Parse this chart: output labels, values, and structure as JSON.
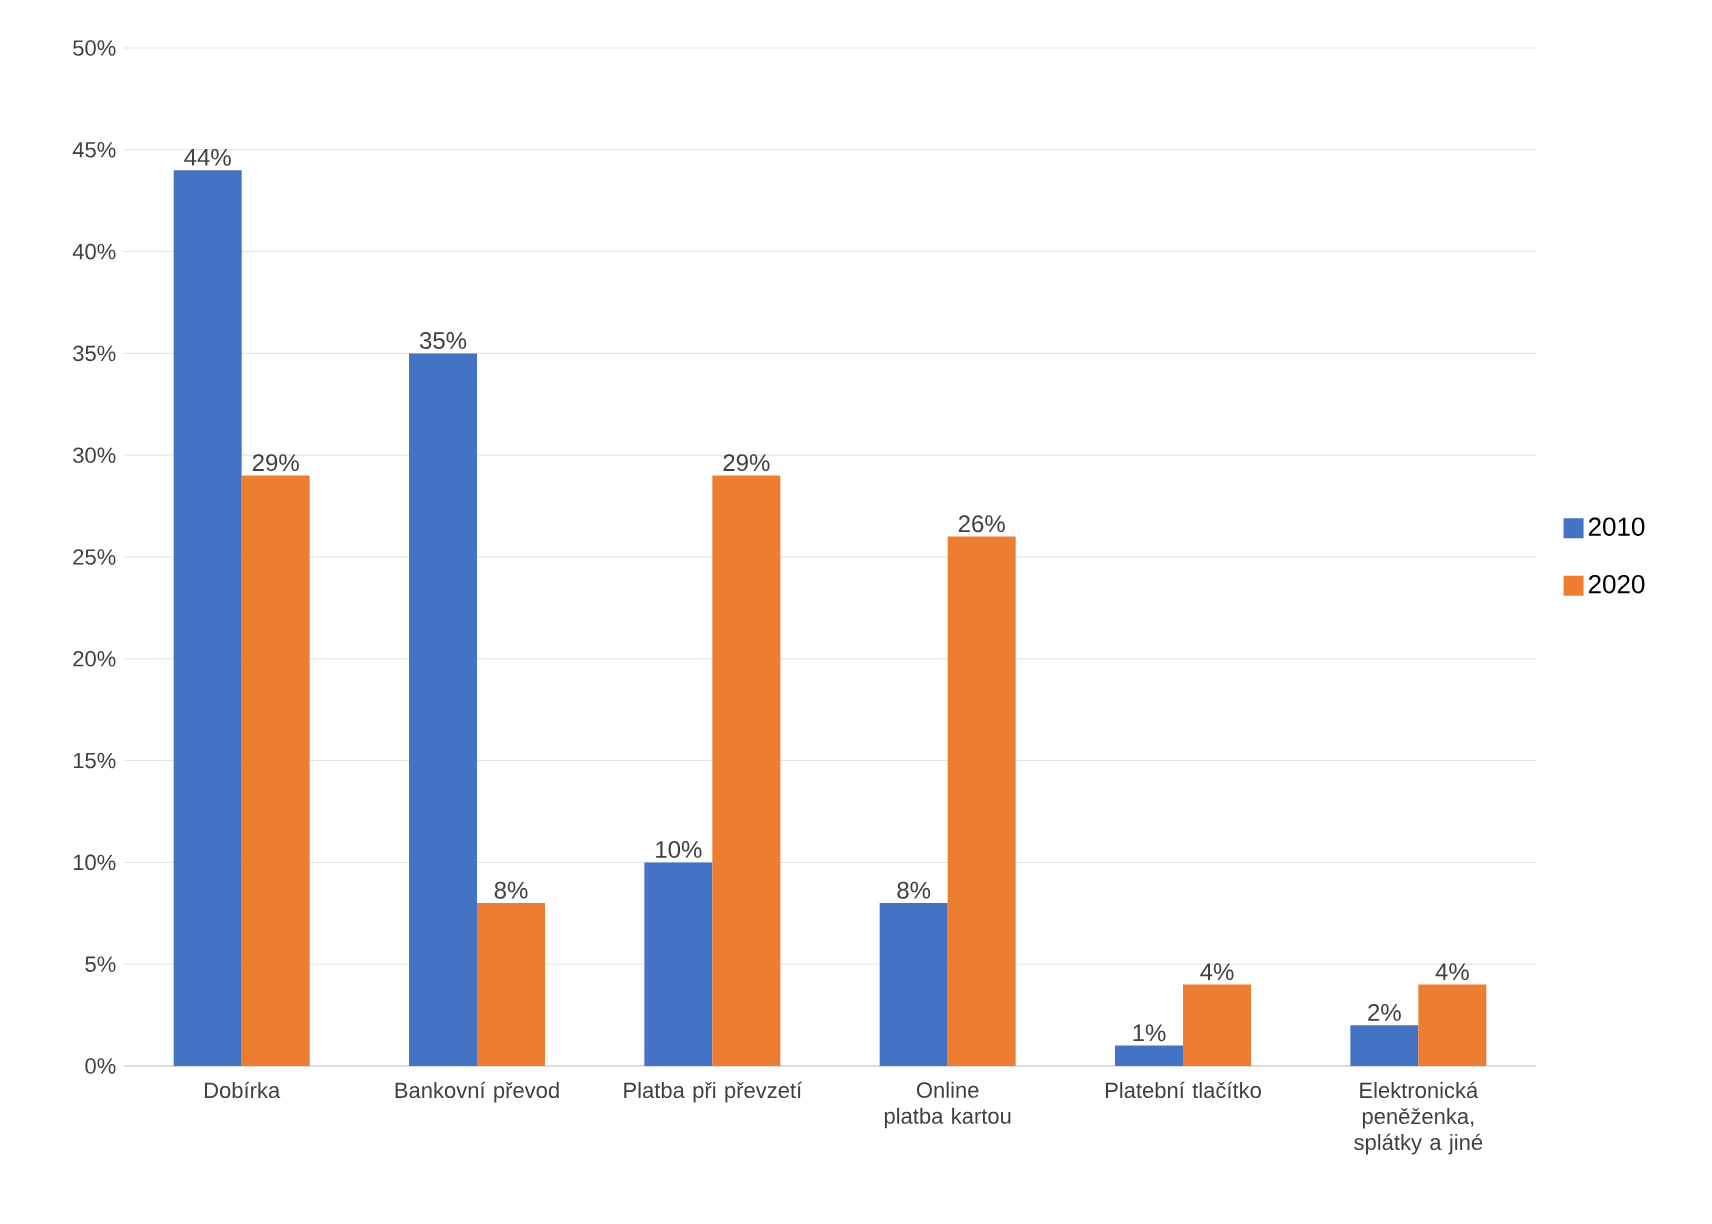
{
  "chart_data": {
    "type": "bar",
    "categories": [
      "Dobírka",
      "Bankovní převod",
      "Platba při převzetí",
      "Online platba kartou",
      "Platební tlačítko",
      "Elektronická peněženka, splátky a jiné"
    ],
    "series": [
      {
        "name": "2010",
        "color": "#4472c4",
        "values": [
          44,
          35,
          10,
          8,
          1,
          2
        ],
        "value_labels": [
          "44%",
          "35%",
          "10%",
          "8%",
          "1%",
          "2%"
        ]
      },
      {
        "name": "2020",
        "color": "#ed7d31",
        "values": [
          29,
          8,
          29,
          26,
          4,
          4
        ],
        "value_labels": [
          "29%",
          "8%",
          "29%",
          "26%",
          "4%",
          "4%"
        ]
      }
    ],
    "ylim": [
      0,
      50
    ],
    "yticks": [
      {
        "value": 0,
        "label": "0%"
      },
      {
        "value": 5,
        "label": "5%"
      },
      {
        "value": 10,
        "label": "10%"
      },
      {
        "value": 15,
        "label": "15%"
      },
      {
        "value": 20,
        "label": "20%"
      },
      {
        "value": 25,
        "label": "25%"
      },
      {
        "value": 30,
        "label": "30%"
      },
      {
        "value": 35,
        "label": "35%"
      },
      {
        "value": 40,
        "label": "40%"
      },
      {
        "value": 45,
        "label": "45%"
      },
      {
        "value": 50,
        "label": "50%"
      }
    ],
    "grid": "y",
    "legend": "right"
  }
}
